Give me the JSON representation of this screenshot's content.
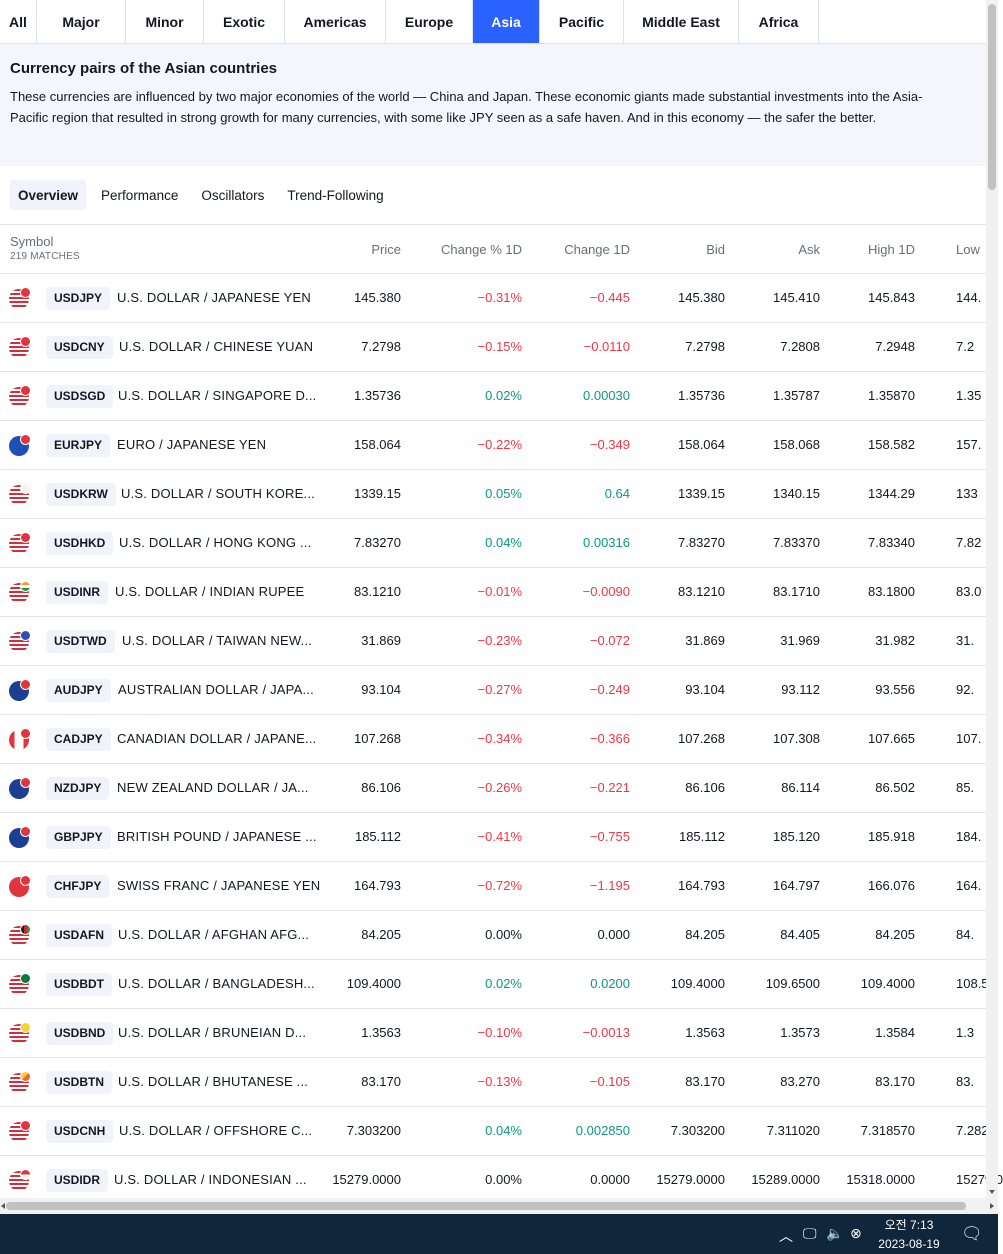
{
  "region_tabs": [
    {
      "label": "All",
      "active": false
    },
    {
      "label": "Major",
      "active": false
    },
    {
      "label": "Minor",
      "active": false
    },
    {
      "label": "Exotic",
      "active": false
    },
    {
      "label": "Americas",
      "active": false
    },
    {
      "label": "Europe",
      "active": false
    },
    {
      "label": "Asia",
      "active": true
    },
    {
      "label": "Pacific",
      "active": false
    },
    {
      "label": "Middle East",
      "active": false
    },
    {
      "label": "Africa",
      "active": false
    }
  ],
  "banner": {
    "title": "Currency pairs of the Asian countries",
    "text": "These currencies are influenced by two major economies of the world — China and Japan. These economic giants made substantial investments into the Asia-Pacific region that resulted in strong growth for many currencies, with some like JPY seen as a safe haven. And in this economy — the safer the better."
  },
  "view_tabs": [
    {
      "label": "Overview",
      "active": true
    },
    {
      "label": "Performance",
      "active": false
    },
    {
      "label": "Oscillators",
      "active": false
    },
    {
      "label": "Trend-Following",
      "active": false
    }
  ],
  "table": {
    "symbol_header": "Symbol",
    "matches": "219 MATCHES",
    "headers": {
      "price": "Price",
      "change_pct": "Change % 1D",
      "change": "Change 1D",
      "bid": "Bid",
      "ask": "Ask",
      "high": "High 1D",
      "low": "Low"
    },
    "rows": [
      {
        "ticker": "USDJPY",
        "desc": "U.S. DOLLAR / JAPANESE YEN",
        "price": "145.380",
        "chgp": "−0.31%",
        "chg": "−0.445",
        "bid": "145.380",
        "ask": "145.410",
        "high": "145.843",
        "low": "144.",
        "dir": "neg",
        "base_flag": "us-flag",
        "quote_flag": "jp-flag"
      },
      {
        "ticker": "USDCNY",
        "desc": "U.S. DOLLAR / CHINESE YUAN",
        "price": "7.2798",
        "chgp": "−0.15%",
        "chg": "−0.0110",
        "bid": "7.2798",
        "ask": "7.2808",
        "high": "7.2948",
        "low": "7.2",
        "dir": "neg",
        "base_flag": "us-flag",
        "quote_flag": "cn-flag"
      },
      {
        "ticker": "USDSGD",
        "desc": "U.S. DOLLAR / SINGAPORE D...",
        "price": "1.35736",
        "chgp": "0.02%",
        "chg": "0.00030",
        "bid": "1.35736",
        "ask": "1.35787",
        "high": "1.35870",
        "low": "1.35",
        "dir": "pos",
        "base_flag": "us-flag",
        "quote_flag": "sg-flag"
      },
      {
        "ticker": "EURJPY",
        "desc": "EURO / JAPANESE YEN",
        "price": "158.064",
        "chgp": "−0.22%",
        "chg": "−0.349",
        "bid": "158.064",
        "ask": "158.068",
        "high": "158.582",
        "low": "157.",
        "dir": "neg",
        "base_flag": "eu-flag",
        "quote_flag": "jp-flag"
      },
      {
        "ticker": "USDKRW",
        "desc": "U.S. DOLLAR / SOUTH KORE...",
        "price": "1339.15",
        "chgp": "0.05%",
        "chg": "0.64",
        "bid": "1339.15",
        "ask": "1340.15",
        "high": "1344.29",
        "low": "133",
        "dir": "pos",
        "base_flag": "us-flag",
        "quote_flag": "kr-flag"
      },
      {
        "ticker": "USDHKD",
        "desc": "U.S. DOLLAR / HONG KONG ...",
        "price": "7.83270",
        "chgp": "0.04%",
        "chg": "0.00316",
        "bid": "7.83270",
        "ask": "7.83370",
        "high": "7.83340",
        "low": "7.82",
        "dir": "pos",
        "base_flag": "us-flag",
        "quote_flag": "hk-flag"
      },
      {
        "ticker": "USDINR",
        "desc": "U.S. DOLLAR / INDIAN RUPEE",
        "price": "83.1210",
        "chgp": "−0.01%",
        "chg": "−0.0090",
        "bid": "83.1210",
        "ask": "83.1710",
        "high": "83.1800",
        "low": "83.0",
        "dir": "neg",
        "base_flag": "us-flag",
        "quote_flag": "in-flag"
      },
      {
        "ticker": "USDTWD",
        "desc": "U.S. DOLLAR / TAIWAN NEW...",
        "price": "31.869",
        "chgp": "−0.23%",
        "chg": "−0.072",
        "bid": "31.869",
        "ask": "31.969",
        "high": "31.982",
        "low": "31.",
        "dir": "neg",
        "base_flag": "us-flag",
        "quote_flag": "tw-flag"
      },
      {
        "ticker": "AUDJPY",
        "desc": "AUSTRALIAN DOLLAR / JAPA...",
        "price": "93.104",
        "chgp": "−0.27%",
        "chg": "−0.249",
        "bid": "93.104",
        "ask": "93.112",
        "high": "93.556",
        "low": "92.",
        "dir": "neg",
        "base_flag": "au-flag",
        "quote_flag": "jp-flag"
      },
      {
        "ticker": "CADJPY",
        "desc": "CANADIAN DOLLAR / JAPANE...",
        "price": "107.268",
        "chgp": "−0.34%",
        "chg": "−0.366",
        "bid": "107.268",
        "ask": "107.308",
        "high": "107.665",
        "low": "107.",
        "dir": "neg",
        "base_flag": "ca-flag",
        "quote_flag": "jp-flag"
      },
      {
        "ticker": "NZDJPY",
        "desc": "NEW ZEALAND DOLLAR / JA...",
        "price": "86.106",
        "chgp": "−0.26%",
        "chg": "−0.221",
        "bid": "86.106",
        "ask": "86.114",
        "high": "86.502",
        "low": "85.",
        "dir": "neg",
        "base_flag": "nz-flag",
        "quote_flag": "jp-flag"
      },
      {
        "ticker": "GBPJPY",
        "desc": "BRITISH POUND / JAPANESE ...",
        "price": "185.112",
        "chgp": "−0.41%",
        "chg": "−0.755",
        "bid": "185.112",
        "ask": "185.120",
        "high": "185.918",
        "low": "184.",
        "dir": "neg",
        "base_flag": "gb-flag",
        "quote_flag": "jp-flag"
      },
      {
        "ticker": "CHFJPY",
        "desc": "SWISS FRANC / JAPANESE YEN",
        "price": "164.793",
        "chgp": "−0.72%",
        "chg": "−1.195",
        "bid": "164.793",
        "ask": "164.797",
        "high": "166.076",
        "low": "164.",
        "dir": "neg",
        "base_flag": "ch-flag",
        "quote_flag": "jp-flag"
      },
      {
        "ticker": "USDAFN",
        "desc": "U.S. DOLLAR / AFGHAN AFG...",
        "price": "84.205",
        "chgp": "0.00%",
        "chg": "0.000",
        "bid": "84.205",
        "ask": "84.405",
        "high": "84.205",
        "low": "84.",
        "dir": "flat",
        "base_flag": "us-flag",
        "quote_flag": "af-flag"
      },
      {
        "ticker": "USDBDT",
        "desc": "U.S. DOLLAR / BANGLADESH...",
        "price": "109.4000",
        "chgp": "0.02%",
        "chg": "0.0200",
        "bid": "109.4000",
        "ask": "109.6500",
        "high": "109.4000",
        "low": "108.5",
        "dir": "pos",
        "base_flag": "us-flag",
        "quote_flag": "bd-flag"
      },
      {
        "ticker": "USDBND",
        "desc": "U.S. DOLLAR / BRUNEIAN D...",
        "price": "1.3563",
        "chgp": "−0.10%",
        "chg": "−0.0013",
        "bid": "1.3563",
        "ask": "1.3573",
        "high": "1.3584",
        "low": "1.3",
        "dir": "neg",
        "base_flag": "us-flag",
        "quote_flag": "bn-flag"
      },
      {
        "ticker": "USDBTN",
        "desc": "U.S. DOLLAR / BHUTANESE ...",
        "price": "83.170",
        "chgp": "−0.13%",
        "chg": "−0.105",
        "bid": "83.170",
        "ask": "83.270",
        "high": "83.170",
        "low": "83.",
        "dir": "neg",
        "base_flag": "us-flag",
        "quote_flag": "bt-flag"
      },
      {
        "ticker": "USDCNH",
        "desc": "U.S. DOLLAR / OFFSHORE C...",
        "price": "7.303200",
        "chgp": "0.04%",
        "chg": "0.002850",
        "bid": "7.303200",
        "ask": "7.311020",
        "high": "7.318570",
        "low": "7.282",
        "dir": "pos",
        "base_flag": "us-flag",
        "quote_flag": "cn-flag"
      },
      {
        "ticker": "USDIDR",
        "desc": "U.S. DOLLAR / INDONESIAN ...",
        "price": "15279.0000",
        "chgp": "0.00%",
        "chg": "0.0000",
        "bid": "15279.0000",
        "ask": "15289.0000",
        "high": "15318.0000",
        "low": "15279.0",
        "dir": "flat",
        "base_flag": "us-flag",
        "quote_flag": "id-flag"
      }
    ]
  },
  "taskbar": {
    "time": "오전 7:13",
    "date": "2023-08-19"
  },
  "colors": {
    "accent": "#2962ff",
    "negative": "#f23645",
    "positive": "#089981",
    "taskbar": "#10263b"
  }
}
